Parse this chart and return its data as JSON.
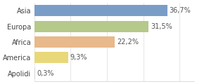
{
  "categories": [
    "Asia",
    "Europa",
    "Africa",
    "America",
    "Apolidi"
  ],
  "values": [
    36.7,
    31.5,
    22.2,
    9.3,
    0.3
  ],
  "labels": [
    "36,7%",
    "31,5%",
    "22,2%",
    "9,3%",
    "0,3%"
  ],
  "bar_colors": [
    "#7a9dc8",
    "#b5c98a",
    "#e8b98a",
    "#e8d87a",
    "#d4d4d4"
  ],
  "background_color": "#ffffff",
  "xlim": [
    0,
    44
  ],
  "label_fontsize": 7.0,
  "tick_fontsize": 7.0
}
